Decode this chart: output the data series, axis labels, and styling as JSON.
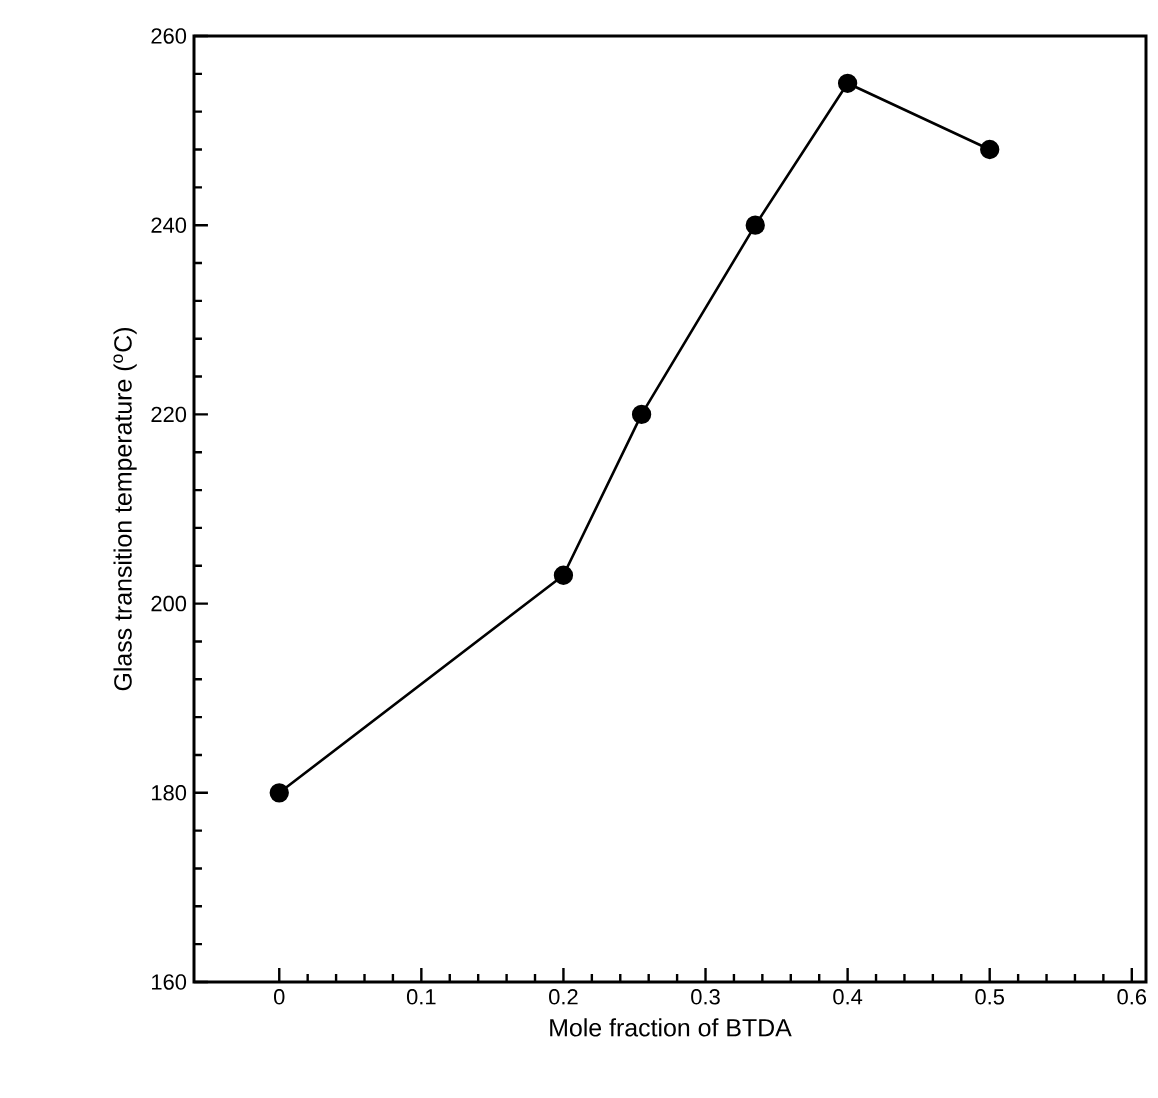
{
  "chart_data": {
    "type": "line",
    "xlabel": "Mole fraction of BTDA",
    "ylabel": "Glass transition temperature ($^{o}$C)",
    "x": [
      0,
      0.2,
      0.255,
      0.335,
      0.4,
      0.5
    ],
    "series": [
      {
        "color": "#000000",
        "values": [
          180,
          203,
          220,
          240,
          255,
          248
        ]
      }
    ],
    "xlim": [
      -0.06,
      0.61
    ],
    "ylim": [
      160,
      260
    ],
    "xticks": [
      0,
      0.1,
      0.2,
      0.3,
      0.4,
      0.5,
      0.6
    ],
    "yticks": [
      160,
      180,
      200,
      220,
      240,
      260
    ],
    "marker": "circle",
    "line_style": "solid"
  }
}
